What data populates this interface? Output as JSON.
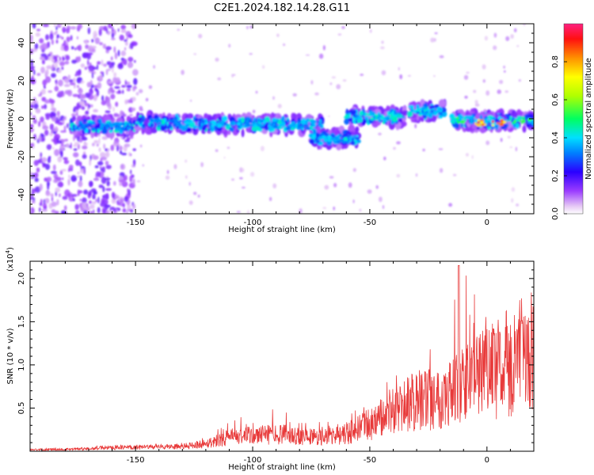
{
  "figure_title": "C2E1.2024.182.14.28.G11",
  "chart_data": [
    {
      "type": "heatmap",
      "xlabel": "Height of straight line (km)",
      "ylabel": "Frequency (Hz)",
      "xlim": [
        -195,
        20
      ],
      "ylim": [
        -50,
        50
      ],
      "x_ticks": [
        -150,
        -100,
        -50,
        0
      ],
      "y_ticks": [
        -40,
        -20,
        0,
        20,
        40
      ],
      "colorbar": {
        "label": "Normalized spectral amplitude",
        "range": [
          0.0,
          1.0
        ],
        "ticks": [
          "0.0",
          "0.2",
          "0.4",
          "0.6",
          "0.8"
        ],
        "tick_values": [
          0.0,
          0.2,
          0.4,
          0.6,
          0.8
        ]
      },
      "ridge_segments": [
        {
          "x_start": -178,
          "x_end": -150,
          "y": -4,
          "amplitude": 0.35
        },
        {
          "x_start": -150,
          "x_end": -130,
          "y": -2,
          "amplitude": 0.35
        },
        {
          "x_start": -130,
          "x_end": -70,
          "y": -3,
          "amplitude": 0.4
        },
        {
          "x_start": -75,
          "x_end": -55,
          "y": -10,
          "amplitude": 0.4
        },
        {
          "x_start": -60,
          "x_end": -35,
          "y": 1,
          "amplitude": 0.45
        },
        {
          "x_start": -35,
          "x_end": -18,
          "y": 4,
          "amplitude": 0.4
        },
        {
          "x_start": -15,
          "x_end": 20,
          "y": -1,
          "amplitude": 0.55
        },
        {
          "x_start": -8,
          "x_end": 8,
          "y": -2,
          "amplitude": 0.95
        }
      ]
    },
    {
      "type": "line",
      "xlabel": "Height of straight line (km)",
      "ylabel": "SNR (10 * v/v)",
      "y_multiplier": "(x10",
      "y_multiplier_exp": "4",
      "y_multiplier_close": ")",
      "xlim": [
        -195,
        20
      ],
      "ylim": [
        0,
        2.2
      ],
      "x_ticks": [
        -150,
        -100,
        -50,
        0
      ],
      "y_ticks": [
        0.5,
        1.0,
        1.5,
        2.0
      ],
      "series": [
        {
          "color": "#e83a3a",
          "x": [
            -195,
            -170,
            -160,
            -150,
            -130,
            -120,
            -110,
            -100,
            -90,
            -80,
            -70,
            -60,
            -50,
            -40,
            -30,
            -20,
            -10,
            0,
            10,
            20
          ],
          "y_mean": [
            0.02,
            0.03,
            0.05,
            0.05,
            0.06,
            0.1,
            0.18,
            0.2,
            0.22,
            0.2,
            0.18,
            0.22,
            0.35,
            0.5,
            0.65,
            0.7,
            0.85,
            1.0,
            1.15,
            1.3
          ],
          "y_peak": [
            0.04,
            0.05,
            0.08,
            0.08,
            0.1,
            0.18,
            0.35,
            0.45,
            0.55,
            0.4,
            0.35,
            0.4,
            0.6,
            0.9,
            1.05,
            1.3,
            2.15,
            1.65,
            1.6,
            1.55
          ]
        }
      ]
    }
  ]
}
